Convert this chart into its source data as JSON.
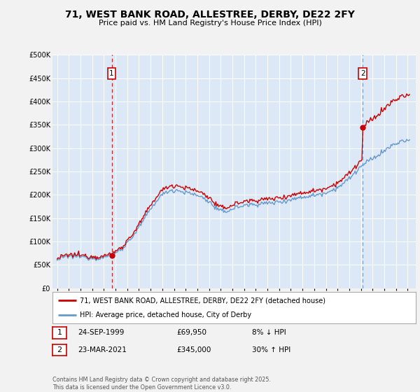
{
  "title": "71, WEST BANK ROAD, ALLESTREE, DERBY, DE22 2FY",
  "subtitle": "Price paid vs. HM Land Registry's House Price Index (HPI)",
  "legend_line1": "71, WEST BANK ROAD, ALLESTREE, DERBY, DE22 2FY (detached house)",
  "legend_line2": "HPI: Average price, detached house, City of Derby",
  "sale1_date": "24-SEP-1999",
  "sale1_price": "£69,950",
  "sale1_hpi": "8% ↓ HPI",
  "sale2_date": "23-MAR-2021",
  "sale2_price": "£345,000",
  "sale2_hpi": "30% ↑ HPI",
  "copyright": "Contains HM Land Registry data © Crown copyright and database right 2025.\nThis data is licensed under the Open Government Licence v3.0.",
  "hpi_color": "#6699cc",
  "sale_color": "#cc0000",
  "vline_color": "#cc0000",
  "ylim": [
    0,
    500000
  ],
  "yticks": [
    0,
    50000,
    100000,
    150000,
    200000,
    250000,
    300000,
    350000,
    400000,
    450000,
    500000
  ],
  "background_color": "#f2f2f2",
  "plot_bg_color": "#dce8f5"
}
